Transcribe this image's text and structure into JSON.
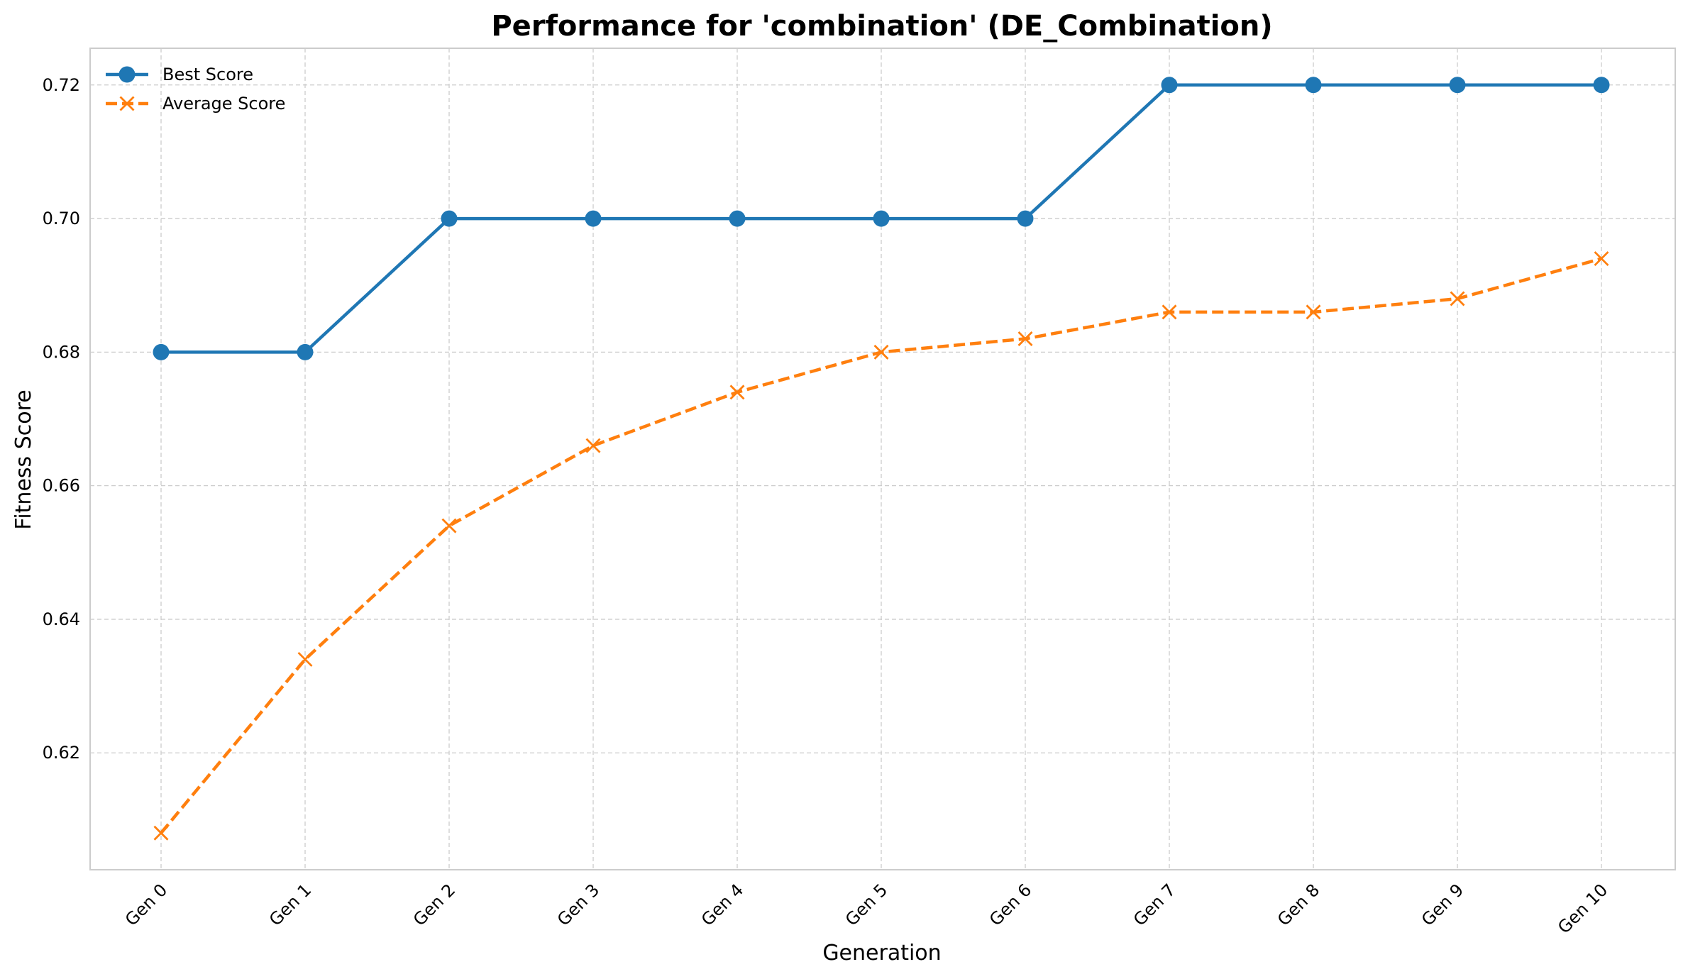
{
  "chart_data": {
    "type": "line",
    "title": "Performance for 'combination' (DE_Combination)",
    "xlabel": "Generation",
    "ylabel": "Fitness Score",
    "categories": [
      "Gen 0",
      "Gen 1",
      "Gen 2",
      "Gen 3",
      "Gen 4",
      "Gen 5",
      "Gen 6",
      "Gen 7",
      "Gen 8",
      "Gen 9",
      "Gen 10"
    ],
    "ylim": [
      0.6025,
      0.7255
    ],
    "yticks": [
      0.62,
      0.64,
      0.66,
      0.68,
      0.7,
      0.72
    ],
    "ytick_labels": [
      "0.62",
      "0.64",
      "0.66",
      "0.68",
      "0.70",
      "0.72"
    ],
    "grid": true,
    "legend_position": "upper-left",
    "series": [
      {
        "name": "Best Score",
        "values": [
          0.68,
          0.68,
          0.7,
          0.7,
          0.7,
          0.7,
          0.7,
          0.72,
          0.72,
          0.72,
          0.72
        ],
        "color": "#1f77b4",
        "line_style": "solid",
        "marker": "circle"
      },
      {
        "name": "Average Score",
        "values": [
          0.608,
          0.634,
          0.654,
          0.666,
          0.674,
          0.68,
          0.682,
          0.686,
          0.686,
          0.688,
          0.694
        ],
        "color": "#ff7f0e",
        "line_style": "dashed",
        "marker": "x"
      }
    ]
  }
}
